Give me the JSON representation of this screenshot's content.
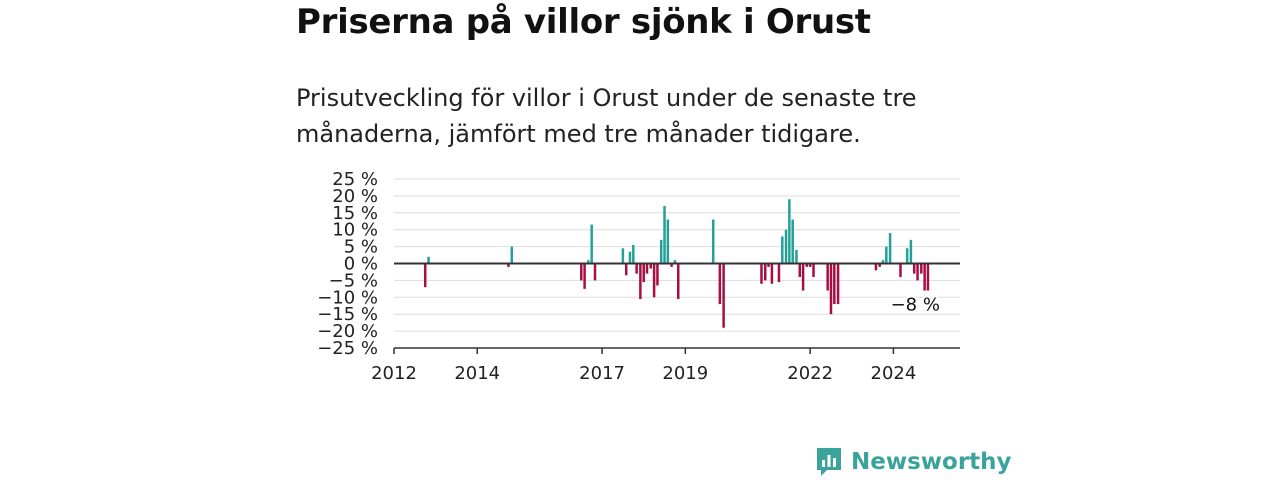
{
  "title": "Priserna på villor sjönk i Orust",
  "subtitle": "Prisutveckling för villor i Orust under de senaste tre månaderna, jämfört med tre månader tidigare.",
  "brand": "Newsworthy",
  "colors": {
    "positive": "#23a199",
    "negative": "#a80d44",
    "grid": "#dddddd",
    "axis": "#333333",
    "brand": "#3aa39b"
  },
  "chart_data": {
    "type": "bar",
    "xlim": [
      2012,
      2025.6
    ],
    "ylim": [
      -25,
      25
    ],
    "yticks": [
      25,
      20,
      15,
      10,
      5,
      0,
      -5,
      -10,
      -15,
      -20,
      -25
    ],
    "yticks_labels": [
      "25 %",
      "20 %",
      "15 %",
      "10 %",
      "5 %",
      "0 %",
      "−5 %",
      "−10 %",
      "−15 %",
      "−20 %",
      "−25 %"
    ],
    "xticks": [
      2012,
      2014,
      2017,
      2019,
      2022,
      2024
    ],
    "xticks_labels": [
      "2012",
      "2014",
      "2017",
      "2019",
      "2022",
      "2024"
    ],
    "grid": true,
    "annotation": "−8 %",
    "x": [
      2012.75,
      2012.83,
      2014.75,
      2014.83,
      2016.5,
      2016.58,
      2016.67,
      2016.75,
      2016.83,
      2017.5,
      2017.58,
      2017.67,
      2017.75,
      2017.83,
      2017.92,
      2018.0,
      2018.08,
      2018.17,
      2018.25,
      2018.33,
      2018.42,
      2018.5,
      2018.58,
      2018.67,
      2018.75,
      2018.83,
      2018.92,
      2019.67,
      2019.83,
      2019.92,
      2020.83,
      2020.92,
      2021.0,
      2021.08,
      2021.25,
      2021.33,
      2021.42,
      2021.5,
      2021.58,
      2021.67,
      2021.75,
      2021.83,
      2021.92,
      2022.0,
      2022.08,
      2022.42,
      2022.5,
      2022.58,
      2022.67,
      2023.58,
      2023.67,
      2023.75,
      2023.83,
      2023.92,
      2024.17,
      2024.33,
      2024.42,
      2024.5,
      2024.58,
      2024.67,
      2024.75,
      2024.83
    ],
    "values": [
      -7,
      2,
      -1,
      5,
      -5,
      -7.5,
      1,
      11.5,
      -5,
      4.5,
      -3.5,
      3.5,
      5.5,
      -3,
      -10.5,
      -5.5,
      -3,
      -1.5,
      -10,
      -6.5,
      7,
      17,
      13,
      -1,
      1,
      -10.5,
      0,
      13,
      -12,
      -19,
      -6,
      -5,
      -1,
      -6,
      -5.5,
      8,
      10,
      19,
      13,
      4,
      -4,
      -8,
      -1,
      -1,
      -4,
      -8,
      -15,
      -12,
      -12,
      -2,
      -1,
      1,
      5,
      9,
      -4,
      4.5,
      7,
      -3,
      -5,
      -3,
      -8,
      -8
    ]
  }
}
